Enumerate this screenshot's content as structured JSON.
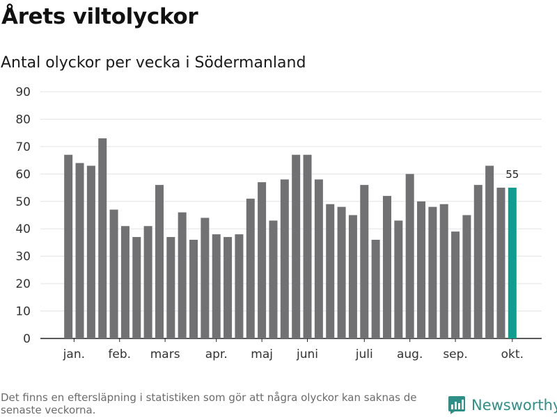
{
  "header": {
    "title": "Årets viltolyckor",
    "subtitle": "Antal olyckor per vecka i Södermanland"
  },
  "footer": {
    "note": "Det finns en eftersläpning i statistiken som gör att några olyckor kan saknas de senaste veckorna.",
    "brand": "Newsworthy"
  },
  "colors": {
    "bar": "#717073",
    "highlight": "#0f9d8f",
    "grid": "#e3e3e3",
    "brand": "#2f8f86"
  },
  "chart_data": {
    "type": "bar",
    "title": "Antal olyckor per vecka i Södermanland",
    "xlabel": "",
    "ylabel": "",
    "ylim": [
      0,
      90
    ],
    "yticks": [
      0,
      10,
      20,
      30,
      40,
      50,
      60,
      70,
      80,
      90
    ],
    "values": [
      67,
      64,
      63,
      73,
      47,
      41,
      37,
      41,
      56,
      37,
      46,
      36,
      44,
      38,
      37,
      38,
      51,
      57,
      43,
      58,
      67,
      67,
      58,
      49,
      48,
      45,
      56,
      36,
      52,
      43,
      60,
      50,
      48,
      49,
      39,
      45,
      56,
      63,
      55,
      55
    ],
    "highlight_index": 39,
    "highlight_label": "55",
    "month_labels": [
      {
        "label": "jan.",
        "index": 0.5
      },
      {
        "label": "feb.",
        "index": 4.5
      },
      {
        "label": "mars",
        "index": 8.5
      },
      {
        "label": "apr.",
        "index": 13.0
      },
      {
        "label": "maj",
        "index": 17.0
      },
      {
        "label": "juni",
        "index": 21.0
      },
      {
        "label": "juli",
        "index": 26.0
      },
      {
        "label": "aug.",
        "index": 30.0
      },
      {
        "label": "sep.",
        "index": 34.0
      },
      {
        "label": "okt.",
        "index": 39.0
      }
    ]
  }
}
